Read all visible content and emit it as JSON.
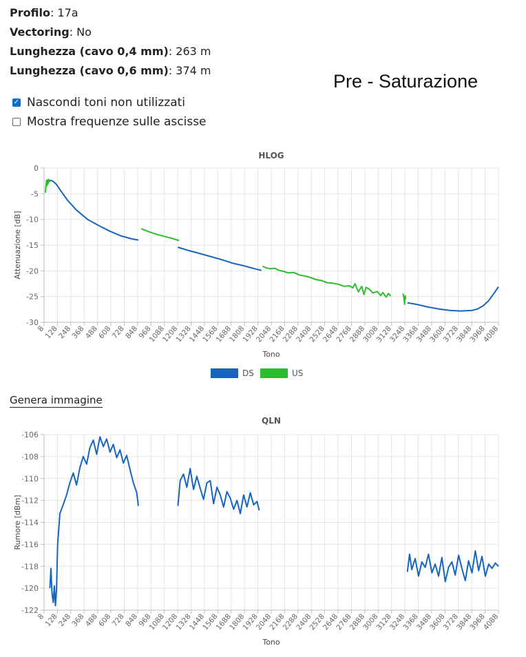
{
  "info": [
    {
      "label": "Profilo",
      "value": ": 17a"
    },
    {
      "label": "Vectoring",
      "value": ": No"
    },
    {
      "label": "Lunghezza (cavo 0,4 mm)",
      "value": ": 263 m"
    },
    {
      "label": "Lunghezza (cavo 0,6 mm)",
      "value": ": 374 m"
    }
  ],
  "annotation": "Pre - Saturazione",
  "options": [
    {
      "label": "Nascondi toni non utilizzati",
      "checked": true
    },
    {
      "label": "Mostra frequenze sulle ascisse",
      "checked": false
    }
  ],
  "generate_link": "Genera immagine",
  "colors": {
    "ds": "#1565c0",
    "us": "#2bbd2b",
    "grid": "#e4e4e4",
    "axis": "#bbbbbb"
  },
  "x_ticks": [
    "8",
    "128",
    "248",
    "368",
    "488",
    "608",
    "728",
    "848",
    "968",
    "1088",
    "1208",
    "1328",
    "1448",
    "1568",
    "1688",
    "1808",
    "1928",
    "2048",
    "2168",
    "2288",
    "2408",
    "2528",
    "2648",
    "2768",
    "2888",
    "3008",
    "3128",
    "3248",
    "3368",
    "3488",
    "3608",
    "3728",
    "3848",
    "3968",
    "4088"
  ],
  "chart_data": [
    {
      "type": "line",
      "title": "HLOG",
      "xlabel": "Tono",
      "ylabel": "Attenuazione [dB]",
      "xlim": [
        8,
        4088
      ],
      "ylim": [
        -30,
        0
      ],
      "yticks": [
        0,
        -5,
        -10,
        -15,
        -20,
        -25,
        -30
      ],
      "legend": {
        "placement": "bottom-center",
        "items": [
          {
            "name": "DS",
            "color": "#1565c0"
          },
          {
            "name": "US",
            "color": "#2bbd2b"
          }
        ]
      },
      "series": [
        {
          "name": "DS",
          "color": "#1565c0",
          "segments": [
            {
              "x": [
                50,
                70,
                90,
                120,
                160,
                220,
                300,
                400,
                500,
                600,
                700,
                800,
                855
              ],
              "y": [
                -2.6,
                -2.4,
                -2.6,
                -3.2,
                -4.5,
                -6.3,
                -8.2,
                -10.0,
                -11.2,
                -12.3,
                -13.2,
                -13.8,
                -14.0
              ]
            },
            {
              "x": [
                1210,
                1300,
                1400,
                1500,
                1600,
                1700,
                1800,
                1900,
                1960
              ],
              "y": [
                -15.4,
                -16.0,
                -16.6,
                -17.2,
                -17.8,
                -18.5,
                -19.0,
                -19.6,
                -19.9
              ]
            },
            {
              "x": [
                3270,
                3350,
                3450,
                3550,
                3650,
                3750,
                3850,
                3900,
                3950,
                4000,
                4050,
                4088
              ],
              "y": [
                -26.2,
                -26.5,
                -27.0,
                -27.4,
                -27.7,
                -27.8,
                -27.7,
                -27.4,
                -26.8,
                -25.8,
                -24.3,
                -23.1
              ]
            }
          ]
        },
        {
          "name": "US",
          "color": "#2bbd2b",
          "segments": [
            {
              "x": [
                20,
                25,
                30,
                35,
                40,
                45,
                50,
                55
              ],
              "y": [
                -4.8,
                -3.5,
                -2.4,
                -3.4,
                -2.3,
                -3.0,
                -2.2,
                -2.8
              ]
            },
            {
              "x": [
                880,
                950,
                1020,
                1090,
                1160,
                1220
              ],
              "y": [
                -11.8,
                -12.4,
                -12.9,
                -13.3,
                -13.7,
                -14.1
              ]
            },
            {
              "x": [
                1970,
                2000,
                2040,
                2080,
                2120,
                2160,
                2200,
                2250,
                2300,
                2350,
                2400,
                2450,
                2500,
                2550,
                2600,
                2650,
                2700,
                2750,
                2780,
                2800,
                2830,
                2860,
                2880,
                2900,
                2930,
                2960,
                3000,
                3030,
                3050,
                3080,
                3100,
                3120
              ],
              "y": [
                -19.1,
                -19.4,
                -19.6,
                -19.5,
                -19.9,
                -20.1,
                -20.4,
                -20.3,
                -20.8,
                -21.0,
                -21.3,
                -21.7,
                -21.9,
                -22.3,
                -22.4,
                -22.6,
                -23.0,
                -22.9,
                -23.3,
                -22.5,
                -24.1,
                -23.0,
                -24.6,
                -23.2,
                -23.6,
                -24.3,
                -24.0,
                -24.8,
                -24.2,
                -25.1,
                -24.4,
                -24.9
              ]
            },
            {
              "x": [
                3230,
                3240,
                3245,
                3250,
                3255
              ],
              "y": [
                -24.4,
                -25.2,
                -26.5,
                -24.8,
                -25.5
              ]
            }
          ]
        }
      ]
    },
    {
      "type": "line",
      "title": "QLN",
      "xlabel": "Tono",
      "ylabel": "Rumore [dBm]",
      "xlim": [
        8,
        4088
      ],
      "ylim": [
        -122,
        -106
      ],
      "yticks": [
        -106,
        -108,
        -110,
        -112,
        -114,
        -116,
        -118,
        -120,
        -122
      ],
      "series": [
        {
          "name": "DS",
          "color": "#1565c0",
          "segments": [
            {
              "x": [
                60,
                70,
                80,
                90,
                100,
                110,
                120,
                130,
                150,
                180,
                210,
                240,
                270,
                300,
                330,
                360,
                390,
                420,
                450,
                480,
                510,
                540,
                570,
                600,
                630,
                660,
                690,
                720,
                750,
                780,
                810,
                840,
                855
              ],
              "y": [
                -120.0,
                -118.2,
                -120.5,
                -121.3,
                -119.8,
                -121.6,
                -120.1,
                -116.0,
                -113.2,
                -112.4,
                -111.5,
                -110.4,
                -109.5,
                -110.6,
                -109.0,
                -108.0,
                -108.7,
                -107.2,
                -106.5,
                -107.8,
                -106.2,
                -107.1,
                -106.4,
                -107.6,
                -106.9,
                -108.1,
                -107.4,
                -108.6,
                -107.9,
                -109.2,
                -110.4,
                -111.3,
                -112.5
              ]
            },
            {
              "x": [
                1210,
                1230,
                1260,
                1290,
                1320,
                1350,
                1380,
                1410,
                1440,
                1470,
                1500,
                1530,
                1560,
                1590,
                1620,
                1650,
                1680,
                1710,
                1740,
                1770,
                1800,
                1830,
                1860,
                1890,
                1920,
                1940
              ],
              "y": [
                -112.5,
                -110.2,
                -109.6,
                -110.8,
                -109.1,
                -111.0,
                -109.8,
                -110.9,
                -111.9,
                -110.4,
                -110.2,
                -112.3,
                -110.8,
                -111.5,
                -112.6,
                -111.2,
                -111.8,
                -112.8,
                -112.0,
                -113.2,
                -111.5,
                -112.6,
                -111.3,
                -112.4,
                -112.1,
                -112.9
              ]
            },
            {
              "x": [
                3270,
                3290,
                3310,
                3340,
                3370,
                3400,
                3430,
                3460,
                3490,
                3520,
                3550,
                3580,
                3610,
                3640,
                3670,
                3700,
                3730,
                3760,
                3790,
                3820,
                3850,
                3880,
                3910,
                3940,
                3970,
                4000,
                4030,
                4060,
                4088
              ],
              "y": [
                -118.5,
                -116.9,
                -118.3,
                -117.3,
                -118.9,
                -117.6,
                -118.1,
                -116.9,
                -118.6,
                -117.8,
                -118.9,
                -117.2,
                -119.4,
                -118.1,
                -117.6,
                -118.8,
                -117.0,
                -118.2,
                -119.3,
                -117.5,
                -118.6,
                -116.6,
                -118.4,
                -117.1,
                -118.9,
                -117.8,
                -118.2,
                -117.7,
                -118.0
              ]
            }
          ]
        }
      ]
    }
  ]
}
